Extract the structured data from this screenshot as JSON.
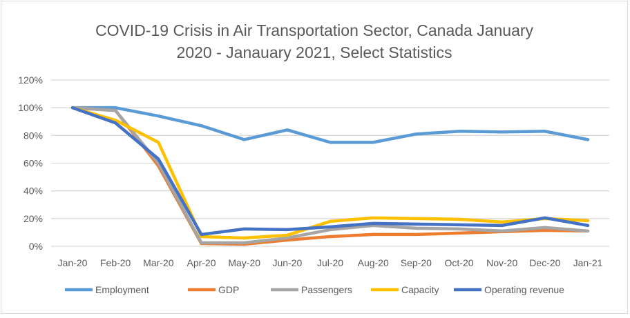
{
  "chart_data": {
    "type": "line",
    "title": [
      "COVID-19 Crisis in Air Transportation Sector, Canada January",
      "2020 - Janauary 2021, Select Statistics"
    ],
    "xlabel": "",
    "ylabel": "",
    "categories": [
      "Jan-20",
      "Feb-20",
      "Mar-20",
      "Apr-20",
      "May-20",
      "Jun-20",
      "Jul-20",
      "Aug-20",
      "Sep-20",
      "Oct-20",
      "Nov-20",
      "Dec-20",
      "Jan-21"
    ],
    "ylim": [
      0,
      120
    ],
    "yticks": [
      "0%",
      "20%",
      "40%",
      "60%",
      "80%",
      "100%",
      "120%"
    ],
    "grid": true,
    "legend_position": "bottom",
    "series": [
      {
        "name": "Employment",
        "color": "#5B9BD5",
        "values": [
          100,
          100,
          94,
          87,
          77,
          84,
          75,
          75,
          81,
          83,
          82.5,
          83,
          77
        ]
      },
      {
        "name": "GDP",
        "color": "#ED7D31",
        "values": [
          100,
          98,
          58,
          2,
          1.5,
          4.5,
          7,
          8.5,
          8.5,
          9.5,
          10.5,
          11.5,
          11
        ]
      },
      {
        "name": "Passengers",
        "color": "#A5A5A5",
        "values": [
          100,
          98,
          60,
          2.5,
          2.5,
          6,
          12,
          15,
          13,
          12.5,
          11,
          13.5,
          11
        ]
      },
      {
        "name": "Capacity",
        "color": "#FFC000",
        "values": [
          100,
          91,
          75,
          7,
          6,
          8,
          18,
          20.5,
          20,
          19.5,
          17.5,
          20,
          18.5
        ]
      },
      {
        "name": "Operating revenue",
        "color": "#4472C4",
        "values": [
          100,
          89,
          63,
          8.5,
          12.5,
          12,
          14,
          16.5,
          16,
          15.5,
          15,
          20.5,
          15
        ]
      }
    ]
  }
}
